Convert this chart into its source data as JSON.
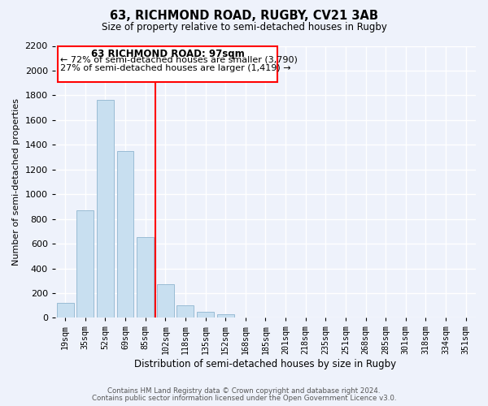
{
  "title": "63, RICHMOND ROAD, RUGBY, CV21 3AB",
  "subtitle": "Size of property relative to semi-detached houses in Rugby",
  "xlabel": "Distribution of semi-detached houses by size in Rugby",
  "ylabel": "Number of semi-detached properties",
  "bar_labels": [
    "19sqm",
    "35sqm",
    "52sqm",
    "69sqm",
    "85sqm",
    "102sqm",
    "118sqm",
    "135sqm",
    "152sqm",
    "168sqm",
    "185sqm",
    "201sqm",
    "218sqm",
    "235sqm",
    "251sqm",
    "268sqm",
    "285sqm",
    "301sqm",
    "318sqm",
    "334sqm",
    "351sqm"
  ],
  "bar_values": [
    120,
    870,
    1760,
    1350,
    650,
    270,
    100,
    50,
    30,
    0,
    0,
    0,
    0,
    0,
    0,
    0,
    0,
    0,
    0,
    0,
    0
  ],
  "bar_color": "#c8dff0",
  "bar_edge_color": "#99bcd4",
  "vline_color": "red",
  "vline_x_index": 4.5,
  "annotation_title": "63 RICHMOND ROAD: 97sqm",
  "annotation_line1": "← 72% of semi-detached houses are smaller (3,790)",
  "annotation_line2": "27% of semi-detached houses are larger (1,419) →",
  "annotation_box_color": "white",
  "annotation_box_edge": "red",
  "ylim": [
    0,
    2200
  ],
  "yticks": [
    0,
    200,
    400,
    600,
    800,
    1000,
    1200,
    1400,
    1600,
    1800,
    2000,
    2200
  ],
  "footer1": "Contains HM Land Registry data © Crown copyright and database right 2024.",
  "footer2": "Contains public sector information licensed under the Open Government Licence v3.0.",
  "background_color": "#eef2fb",
  "grid_color": "white"
}
